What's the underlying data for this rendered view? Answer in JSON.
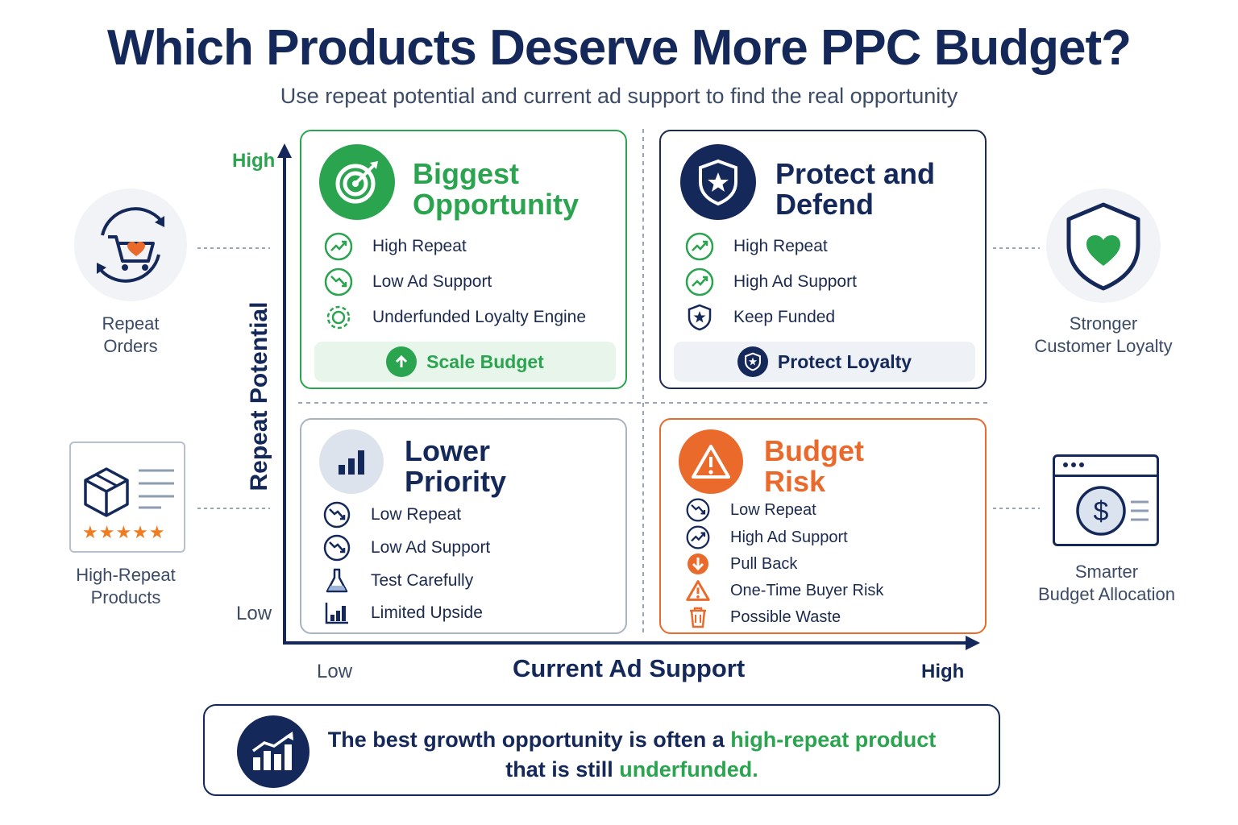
{
  "title": "Which Products Deserve More PPC Budget?",
  "subtitle": "Use repeat potential and current ad support to find the real opportunity",
  "axes": {
    "y_label": "Repeat Potential",
    "y_high": "High",
    "y_low": "Low",
    "x_label": "Current Ad Support",
    "x_low": "Low",
    "x_high": "High"
  },
  "quadrants": {
    "biggest": {
      "title_line1": "Biggest",
      "title_line2": "Opportunity",
      "items": [
        "High Repeat",
        "Low Ad Support",
        "Underfunded Loyalty Engine"
      ],
      "action": "Scale Budget"
    },
    "protect": {
      "title_line1": "Protect and",
      "title_line2": "Defend",
      "items": [
        "High Repeat",
        "High Ad Support",
        "Keep Funded"
      ],
      "action": "Protect Loyalty"
    },
    "lower": {
      "title_line1": "Lower",
      "title_line2": "Priority",
      "items": [
        "Low Repeat",
        "Low Ad Support",
        "Test Carefully",
        "Limited Upside"
      ]
    },
    "risk": {
      "title_line1": "Budget",
      "title_line2": "Risk",
      "items": [
        "Low Repeat",
        "High Ad Support",
        "Pull Back",
        "One-Time Buyer Risk",
        "Possible Waste"
      ]
    }
  },
  "side": {
    "repeat_orders": [
      "Repeat",
      "Orders"
    ],
    "high_repeat_products": [
      "High-Repeat",
      "Products"
    ],
    "stronger_loyalty": [
      "Stronger",
      "Customer Loyalty"
    ],
    "smarter_budget": [
      "Smarter",
      "Budget Allocation"
    ]
  },
  "footer": {
    "line1_pre": "The best growth opportunity is often a ",
    "line1_highlight": "high-repeat product",
    "line2_pre": "that is still ",
    "line2_highlight": "underfunded."
  },
  "colors": {
    "navy": "#14285a",
    "green": "#2aa44f",
    "orange": "#ea6a2c",
    "gray": "#a9b3c2"
  }
}
